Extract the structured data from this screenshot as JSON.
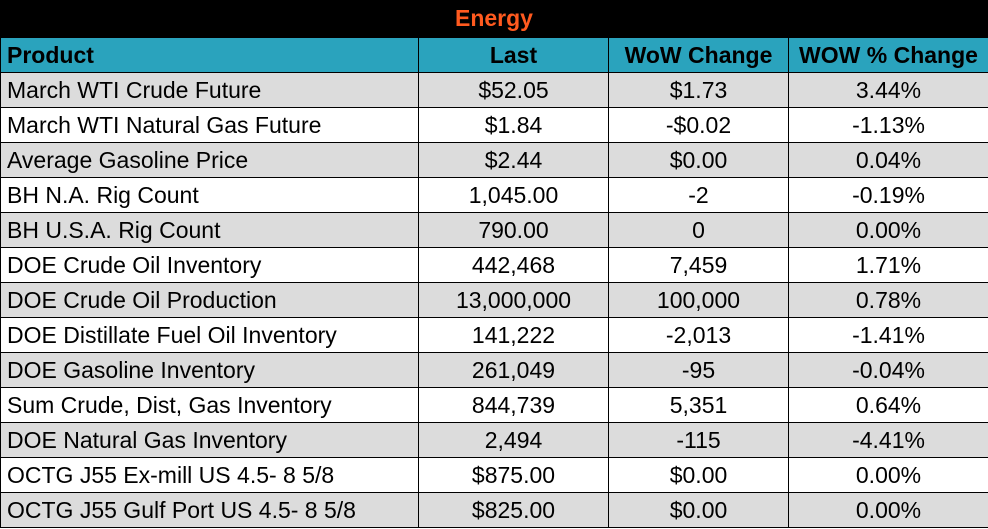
{
  "title": "Energy",
  "columns": [
    "Product",
    "Last",
    "WoW Change",
    "WOW % Change"
  ],
  "rows": [
    {
      "product": "March WTI Crude Future",
      "last": "$52.05",
      "wow": "$1.73",
      "pct": "3.44%"
    },
    {
      "product": "March WTI Natural Gas Future",
      "last": "$1.84",
      "wow": "-$0.02",
      "pct": "-1.13%"
    },
    {
      "product": "Average Gasoline Price",
      "last": "$2.44",
      "wow": "$0.00",
      "pct": "0.04%"
    },
    {
      "product": "BH N.A. Rig Count",
      "last": "1,045.00",
      "wow": "-2",
      "pct": "-0.19%"
    },
    {
      "product": "BH U.S.A. Rig Count",
      "last": "790.00",
      "wow": "0",
      "pct": "0.00%"
    },
    {
      "product": "DOE Crude Oil Inventory",
      "last": "442,468",
      "wow": "7,459",
      "pct": "1.71%"
    },
    {
      "product": "DOE Crude Oil Production",
      "last": "13,000,000",
      "wow": "100,000",
      "pct": "0.78%"
    },
    {
      "product": "DOE Distillate Fuel Oil Inventory",
      "last": "141,222",
      "wow": "-2,013",
      "pct": "-1.41%"
    },
    {
      "product": "DOE Gasoline Inventory",
      "last": "261,049",
      "wow": "-95",
      "pct": "-0.04%"
    },
    {
      "product": "Sum Crude, Dist, Gas Inventory",
      "last": "844,739",
      "wow": "5,351",
      "pct": "0.64%"
    },
    {
      "product": "DOE Natural Gas Inventory",
      "last": "2,494",
      "wow": "-115",
      "pct": "-4.41%"
    },
    {
      "product": "OCTG J55 Ex-mill US 4.5- 8 5/8",
      "last": "$875.00",
      "wow": "$0.00",
      "pct": "0.00%"
    },
    {
      "product": "OCTG J55 Gulf Port US 4.5- 8 5/8",
      "last": "$825.00",
      "wow": "$0.00",
      "pct": "0.00%"
    }
  ],
  "colors": {
    "title_bg": "#000000",
    "title_text": "#ff5a1f",
    "header_bg": "#2aa3bd",
    "row_shade": "#dcdcdc",
    "row_plain": "#ffffff"
  }
}
